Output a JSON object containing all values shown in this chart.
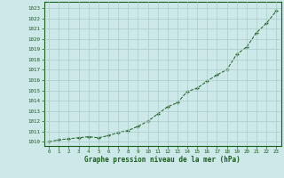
{
  "x": [
    0,
    1,
    2,
    3,
    4,
    5,
    6,
    7,
    8,
    9,
    10,
    11,
    12,
    13,
    14,
    15,
    16,
    17,
    18,
    19,
    20,
    21,
    22,
    23
  ],
  "y": [
    1010.0,
    1010.2,
    1010.3,
    1010.4,
    1010.5,
    1010.4,
    1010.6,
    1010.9,
    1011.1,
    1011.5,
    1012.0,
    1012.7,
    1013.4,
    1013.8,
    1014.9,
    1015.2,
    1015.9,
    1016.5,
    1017.0,
    1018.5,
    1019.2,
    1020.6,
    1021.5,
    1022.7
  ],
  "line_color": "#1a5c1a",
  "marker_color": "#1a5c1a",
  "bg_color": "#cce8e8",
  "grid_color": "#aacccc",
  "xlabel": "Graphe pression niveau de la mer (hPa)",
  "xlabel_color": "#1a5c1a",
  "tick_color": "#1a5c1a",
  "ylabel_ticks": [
    1010,
    1011,
    1012,
    1013,
    1014,
    1015,
    1016,
    1017,
    1018,
    1019,
    1020,
    1021,
    1022,
    1023
  ],
  "xlim": [
    -0.5,
    23.5
  ],
  "ylim": [
    1009.6,
    1023.6
  ],
  "border_color": "#1a5c1a",
  "tick_fontsize": 4.2,
  "xlabel_fontsize": 5.5
}
